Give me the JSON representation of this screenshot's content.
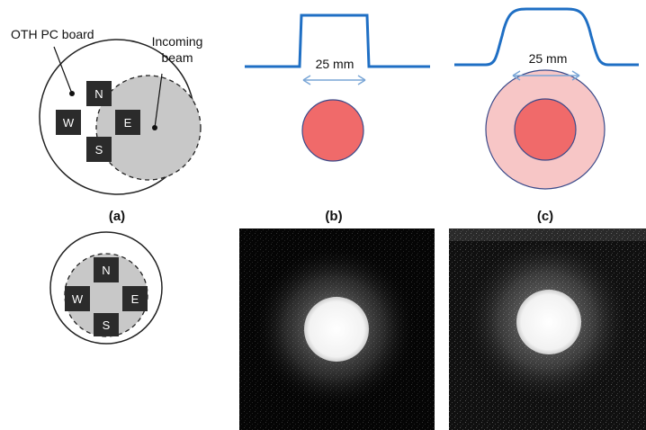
{
  "labels": {
    "board": "OTH PC board",
    "incoming_line1": "Incoming",
    "incoming_line2": "beam",
    "dim_b": "25 mm",
    "dim_c": "25 mm",
    "panel_a": "(a)",
    "panel_b": "(b)",
    "panel_c": "(c)"
  },
  "pads": {
    "north": "N",
    "west": "W",
    "east": "E",
    "south": "S"
  },
  "colors": {
    "profile_line": "#1f6fc4",
    "arrow": "#7aa6d6",
    "spot_core": "#f06a6a",
    "spot_halo": "#f7c6c6",
    "spot_stroke": "#3b4a8a",
    "pad": "#2b2b2b",
    "beam_fill": "#c8c8c8"
  },
  "images": {
    "photo_b": "measured-beam-spot-flat-profile",
    "photo_c": "measured-beam-spot-with-halo"
  }
}
